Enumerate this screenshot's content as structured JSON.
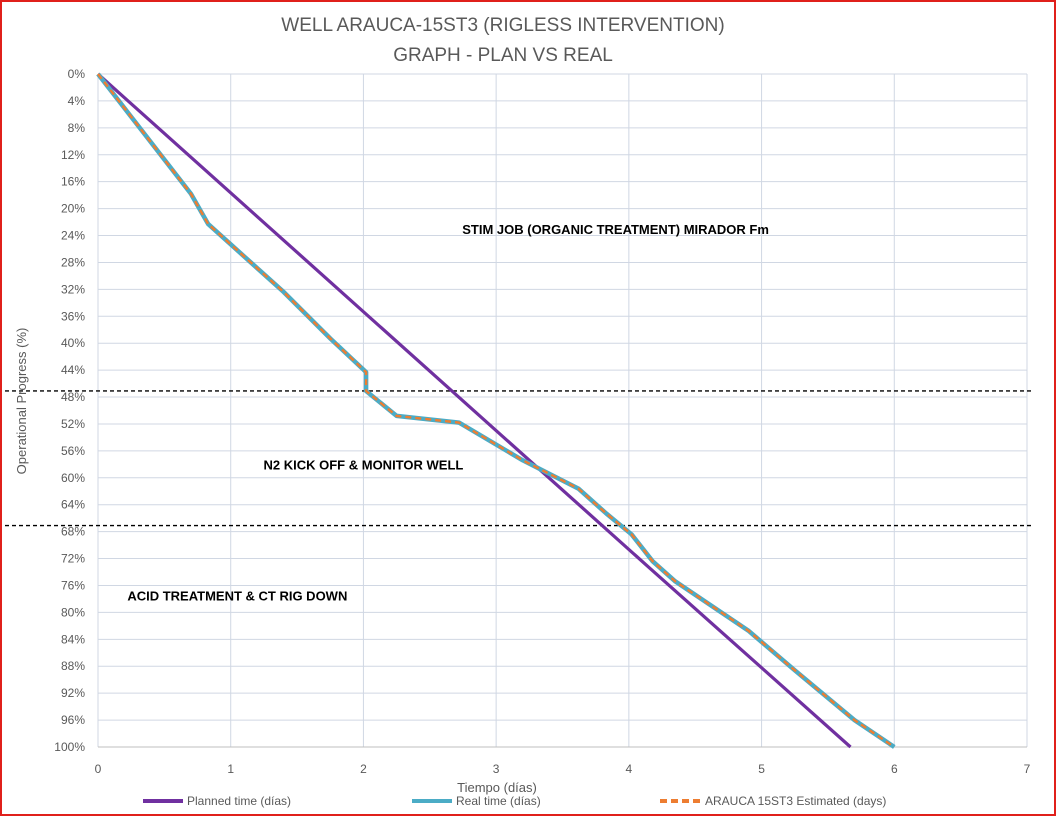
{
  "chart_data": {
    "type": "line",
    "title_line1": "WELL ARAUCA-15ST3 (RIGLESS INTERVENTION)",
    "title_line2": "GRAPH  - PLAN VS REAL",
    "xlabel": "Tiempo (días)",
    "ylabel": "Operational Progress (%)",
    "xlim": [
      0,
      7
    ],
    "ylim": [
      0,
      100
    ],
    "y_inverted": true,
    "grid": true,
    "legend_position": "bottom",
    "x_ticks": [
      "0",
      "1",
      "2",
      "3",
      "4",
      "5",
      "6",
      "7"
    ],
    "y_ticks": [
      "0%",
      "4%",
      "8%",
      "12%",
      "16%",
      "20%",
      "24%",
      "28%",
      "32%",
      "36%",
      "40%",
      "44%",
      "48%",
      "52%",
      "56%",
      "60%",
      "64%",
      "68%",
      "72%",
      "76%",
      "80%",
      "84%",
      "88%",
      "92%",
      "96%",
      "100%"
    ],
    "series": [
      {
        "name": "Planned time (días)",
        "color": "#7030a0",
        "style": "solid",
        "points": [
          [
            0,
            0
          ],
          [
            4.15,
            73.3
          ],
          [
            5.67,
            100
          ]
        ]
      },
      {
        "name": "Real time (días)",
        "color": "#4bacc6",
        "style": "solid",
        "points": [
          [
            0,
            0
          ],
          [
            0.7,
            17.8
          ],
          [
            0.83,
            22.3
          ],
          [
            1.4,
            32.4
          ],
          [
            1.75,
            39.3
          ],
          [
            2.02,
            44.3
          ],
          [
            2.02,
            47.1
          ],
          [
            2.25,
            50.8
          ],
          [
            2.72,
            51.8
          ],
          [
            3.2,
            57.4
          ],
          [
            3.62,
            61.6
          ],
          [
            3.83,
            65.3
          ],
          [
            4.02,
            68.4
          ],
          [
            4.18,
            72.4
          ],
          [
            4.35,
            75.4
          ],
          [
            4.9,
            82.7
          ],
          [
            5.25,
            88.6
          ],
          [
            5.7,
            96.0
          ],
          [
            6.0,
            100
          ]
        ]
      },
      {
        "name": "ARAUCA 15ST3 Estimated (days)",
        "color": "#ed7d31",
        "style": "dashed",
        "points": [
          [
            0,
            0
          ],
          [
            0.7,
            17.8
          ],
          [
            0.83,
            22.3
          ],
          [
            1.4,
            32.4
          ],
          [
            1.75,
            39.3
          ],
          [
            2.02,
            44.3
          ],
          [
            2.02,
            47.1
          ],
          [
            2.25,
            50.8
          ],
          [
            2.72,
            51.8
          ],
          [
            3.2,
            57.4
          ],
          [
            3.62,
            61.6
          ],
          [
            3.83,
            65.3
          ],
          [
            4.02,
            68.4
          ],
          [
            4.18,
            72.4
          ],
          [
            4.35,
            75.4
          ],
          [
            4.9,
            82.7
          ],
          [
            5.25,
            88.6
          ],
          [
            5.7,
            96.0
          ],
          [
            6.0,
            100
          ]
        ]
      }
    ],
    "reference_lines": [
      {
        "y": 47.1,
        "style": "dashed",
        "color": "#000000"
      },
      {
        "y": 67.1,
        "style": "dashed",
        "color": "#000000"
      }
    ],
    "annotations": [
      {
        "text": "STIM JOB (ORGANIC TREATMENT) MIRADOR Fm",
        "x": 3.9,
        "y": 23
      },
      {
        "text": "N2 KICK OFF & MONITOR WELL",
        "x": 2.0,
        "y": 58
      },
      {
        "text": "ACID TREATMENT & CT RIG DOWN",
        "x": 1.05,
        "y": 77.5
      }
    ]
  }
}
